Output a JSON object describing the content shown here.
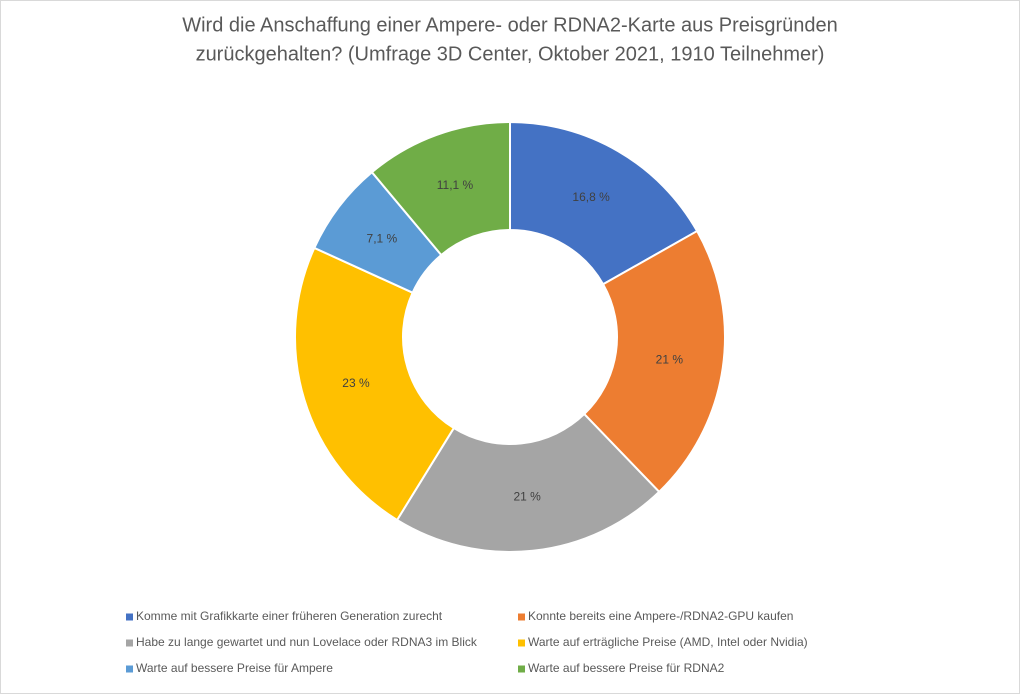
{
  "chart_data": {
    "type": "donut",
    "title": [
      "Wird die Anschaffung einer Ampere- oder RDNA2-Karte aus Preisgründen",
      "zurückgehalten? (Umfrage 3D Center, Oktober 2021, 1910 Teilnehmer)"
    ],
    "categories": [
      "Komme mit Grafikkarte einer früheren Generation zurecht",
      "Konnte bereits eine Ampere-/RDNA2-GPU kaufen",
      "Habe zu lange gewartet und nun Lovelace oder RDNA3 im Blick",
      "Warte auf erträgliche Preise (AMD, Intel oder Nvidia)",
      "Warte auf bessere Preise für Ampere",
      "Warte auf bessere Preise für RDNA2"
    ],
    "values": [
      16.8,
      21,
      21,
      23,
      7.1,
      11.1
    ],
    "value_labels": [
      "16,8 %",
      "21 %",
      "21 %",
      "23 %",
      "7,1 %",
      "11,1 %"
    ],
    "colors": [
      "#4472c4",
      "#ed7d31",
      "#a5a5a5",
      "#ffc000",
      "#5b9bd5",
      "#70ad47"
    ],
    "legend": "bottom"
  }
}
